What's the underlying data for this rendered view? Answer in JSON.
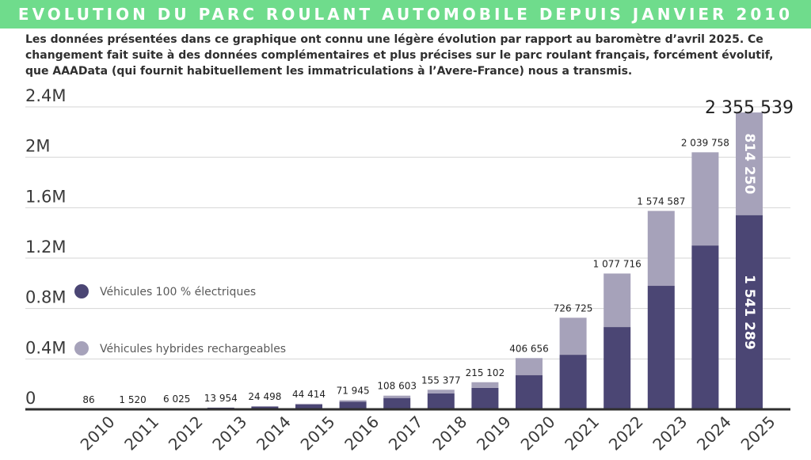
{
  "banner": {
    "title": "EVOLUTION DU PARC ROULANT AUTOMOBILE DEPUIS JANVIER 2010"
  },
  "intro": {
    "text": "Les données présentées dans ce graphique ont connu une légère évolution par rapport au baromètre d’avril 2025. Ce changement fait suite à des données complémentaires et plus précises sur le parc roulant français, forcément évolutif, que AAAData (qui fournit habituellement les immatriculations à l’Avere-France) nous a transmis."
  },
  "chart_data": {
    "type": "bar",
    "stacked": true,
    "categories": [
      "2010",
      "2011",
      "2012",
      "2013",
      "2014",
      "2015",
      "2016",
      "2017",
      "2018",
      "2019",
      "2020",
      "2021",
      "2022",
      "2023",
      "2024",
      "2025"
    ],
    "series": [
      {
        "name": "Véhicules 100 % électriques",
        "color": "#4b4674",
        "values": [
          80,
          1400,
          5500,
          12500,
          21500,
          38000,
          61000,
          90000,
          127000,
          170000,
          272000,
          433000,
          653000,
          980000,
          1300000,
          1541289
        ]
      },
      {
        "name": "Véhicules hybrides rechargeables",
        "color": "#a6a2ba",
        "values": [
          6,
          120,
          525,
          1454,
          2998,
          6414,
          10945,
          18603,
          28377,
          45102,
          134656,
          293725,
          424716,
          594587,
          739758,
          814250
        ]
      }
    ],
    "totals": [
      "86",
      "1 520",
      "6 025",
      "13 954",
      "24 498",
      "44 414",
      "71 945",
      "108 603",
      "155 377",
      "215 102",
      "406 656",
      "726 725",
      "1 077 716",
      "1 574 587",
      "2 039 758",
      "2 355 539"
    ],
    "segment_labels_last": {
      "electric": "1 541 289",
      "hybrid": "814 250"
    },
    "ylim": [
      0,
      2400000
    ],
    "yticks": [
      {
        "value": 0,
        "label": "0"
      },
      {
        "value": 400000,
        "label": "0.4M"
      },
      {
        "value": 800000,
        "label": "0.8M"
      },
      {
        "value": 1200000,
        "label": "1.2M"
      },
      {
        "value": 1600000,
        "label": "1.6M"
      },
      {
        "value": 2000000,
        "label": "2M"
      },
      {
        "value": 2400000,
        "label": "2.4M"
      }
    ],
    "grid": true,
    "legend_position": "left"
  }
}
